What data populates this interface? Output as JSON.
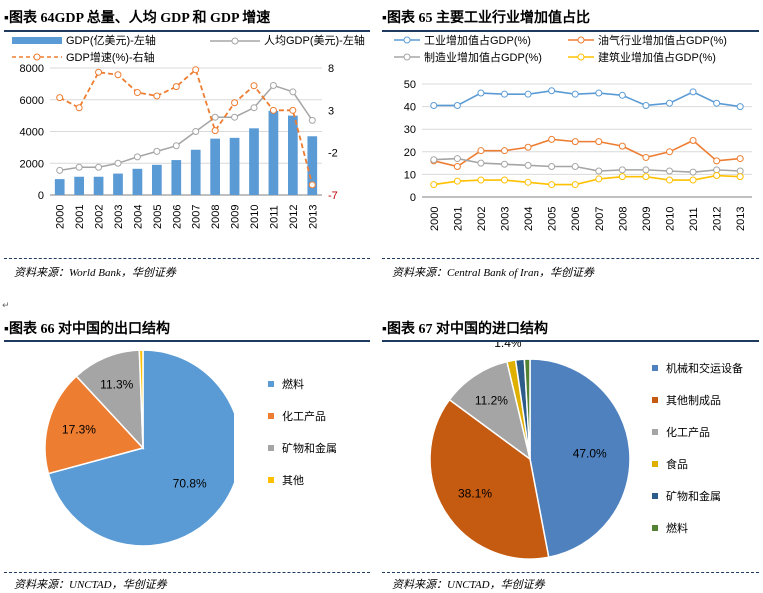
{
  "charts": [
    {
      "title": "图表 64GDP 总量、人均 GDP 和 GDP 增速",
      "source": "资料来源：World Bank，华创证券",
      "type": "combo",
      "categories": [
        "2000",
        "2001",
        "2002",
        "2003",
        "2004",
        "2005",
        "2006",
        "2007",
        "2008",
        "2009",
        "2010",
        "2011",
        "2012",
        "2013"
      ],
      "legend": {
        "bar": "GDP(亿美元)-左轴",
        "line1": "人均GDP(美元)-左轴",
        "line2": "GDP增速(%)-右轴"
      },
      "y_left_ticks": [
        "0",
        "2000",
        "4000",
        "6000",
        "8000"
      ],
      "y_right_ticks": [
        "-7",
        "-2",
        "3",
        "8"
      ],
      "y_left_range": [
        0,
        8000
      ],
      "y_right_range": [
        -7,
        8
      ],
      "gdp": [
        1000,
        1150,
        1150,
        1350,
        1650,
        1900,
        2200,
        2850,
        3550,
        3600,
        4200,
        5300,
        5000,
        3700
      ],
      "gdp_per_capita": [
        1550,
        1750,
        1750,
        2000,
        2400,
        2750,
        3100,
        4000,
        4900,
        4900,
        5500,
        6900,
        6500,
        4700
      ],
      "gdp_growth": [
        4.5,
        3.3,
        7.5,
        7.2,
        5.1,
        4.7,
        5.8,
        7.8,
        0.6,
        3.9,
        5.9,
        3.0,
        3.0,
        -5.8
      ]
    },
    {
      "title": "图表 65 主要工业行业增加值占比",
      "source": "资料来源：Central Bank of Iran，华创证券",
      "type": "line",
      "categories": [
        "2000",
        "2001",
        "2002",
        "2003",
        "2004",
        "2005",
        "2006",
        "2007",
        "2008",
        "2009",
        "2010",
        "2011",
        "2012",
        "2013"
      ],
      "y_ticks": [
        "0",
        "10",
        "20",
        "30",
        "40",
        "50"
      ],
      "y_range": [
        0,
        50
      ],
      "series": [
        {
          "name": "工业增加值占GDP(%)",
          "color": "#5b9bd5",
          "values": [
            40.5,
            40.5,
            46,
            45.5,
            45.5,
            47,
            45.5,
            46,
            45,
            40.5,
            41.5,
            46.5,
            41.5,
            40
          ]
        },
        {
          "name": "油气行业增加值占GDP(%)",
          "color": "#ed7d31",
          "values": [
            16,
            13.5,
            20.5,
            20.5,
            22,
            25.5,
            24.5,
            24.5,
            22.5,
            17.5,
            20,
            25,
            16,
            17
          ]
        },
        {
          "name": "制造业增加值占GDP(%)",
          "color": "#a5a5a5",
          "values": [
            16.5,
            17,
            15,
            14.5,
            14,
            13.5,
            13.5,
            11.5,
            12,
            12,
            11.5,
            11,
            12,
            11.5
          ]
        },
        {
          "name": "建筑业增加值占GDP(%)",
          "color": "#ffc000",
          "values": [
            5.5,
            7,
            7.5,
            7.5,
            6.5,
            5.5,
            5.5,
            8,
            9,
            9,
            7.5,
            7.5,
            9.5,
            9
          ]
        }
      ]
    },
    {
      "title": "图表 66 对中国的出口结构",
      "source": "资料来源：UNCTAD，华创证券",
      "type": "pie",
      "slices": [
        {
          "label": "燃料",
          "value": 70.8,
          "pct": "70.8%",
          "color": "#5b9bd5"
        },
        {
          "label": "化工产品",
          "value": 17.3,
          "pct": "17.3%",
          "color": "#ed7d31"
        },
        {
          "label": "矿物和金属",
          "value": 11.3,
          "pct": "11.3%",
          "color": "#a5a5a5"
        },
        {
          "label": "其他",
          "value": 0.6,
          "pct": "",
          "color": "#ffc000"
        }
      ]
    },
    {
      "title": "图表 67 对中国的进口结构",
      "source": "资料来源：UNCTAD，华创证券",
      "type": "pie",
      "slices": [
        {
          "label": "机械和交运设备",
          "value": 47.0,
          "pct": "47.0%",
          "color": "#4e81bd"
        },
        {
          "label": "其他制成品",
          "value": 38.1,
          "pct": "38.1%",
          "color": "#c55a11"
        },
        {
          "label": "化工产品",
          "value": 11.2,
          "pct": "11.2%",
          "color": "#a5a5a5"
        },
        {
          "label": "食品",
          "value": 1.4,
          "pct": "1.4%",
          "color": "#e0b000"
        },
        {
          "label": "矿物和金属",
          "value": 1.4,
          "pct": "",
          "color": "#2e5c8a"
        },
        {
          "label": "燃料",
          "value": 0.9,
          "pct": "",
          "color": "#548235"
        }
      ]
    }
  ]
}
